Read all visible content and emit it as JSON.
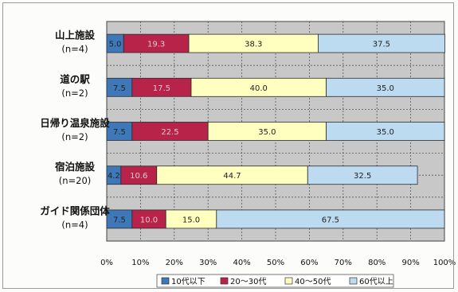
{
  "chart_data": {
    "type": "bar",
    "orientation": "horizontal",
    "stacked": true,
    "categories": [
      {
        "name": "山上施設",
        "n": "(n=4)"
      },
      {
        "name": "道の駅",
        "n": "(n=2)"
      },
      {
        "name": "日帰り温泉施設",
        "n": "(n=2)"
      },
      {
        "name": "宿泊施設",
        "n": "(n=20)"
      },
      {
        "name": "ガイド関係団体",
        "n": "(n=4)"
      }
    ],
    "series": [
      {
        "name": "10代以下",
        "color": "#3f78b8",
        "values": [
          5.0,
          7.5,
          7.5,
          4.2,
          7.5
        ],
        "labels": [
          "5.0",
          "7.5",
          "7.5",
          "4.2",
          "7.5"
        ]
      },
      {
        "name": "20～30代",
        "color": "#b8234a",
        "values": [
          19.3,
          17.5,
          22.5,
          10.6,
          10.0
        ],
        "labels": [
          "19.3",
          "17.5",
          "22.5",
          "10.6",
          "10.0"
        ]
      },
      {
        "name": "40～50代",
        "color": "#ffffc0",
        "values": [
          38.3,
          40.0,
          35.0,
          44.7,
          15.0
        ],
        "labels": [
          "38.3",
          "40.0",
          "35.0",
          "44.7",
          "15.0"
        ]
      },
      {
        "name": "60代以上",
        "color": "#bcdaf0",
        "values": [
          37.5,
          35.0,
          35.0,
          32.5,
          67.5
        ],
        "labels": [
          "37.5",
          "35.0",
          "35.0",
          "32.5",
          "67.5"
        ]
      }
    ],
    "x_ticks": [
      "0%",
      "10%",
      "20%",
      "30%",
      "40%",
      "50%",
      "60%",
      "70%",
      "80%",
      "90%",
      "100%"
    ],
    "xlim": [
      0,
      100
    ],
    "grid": true,
    "plot_background": "#c8c8c8",
    "legend_position": "bottom"
  }
}
